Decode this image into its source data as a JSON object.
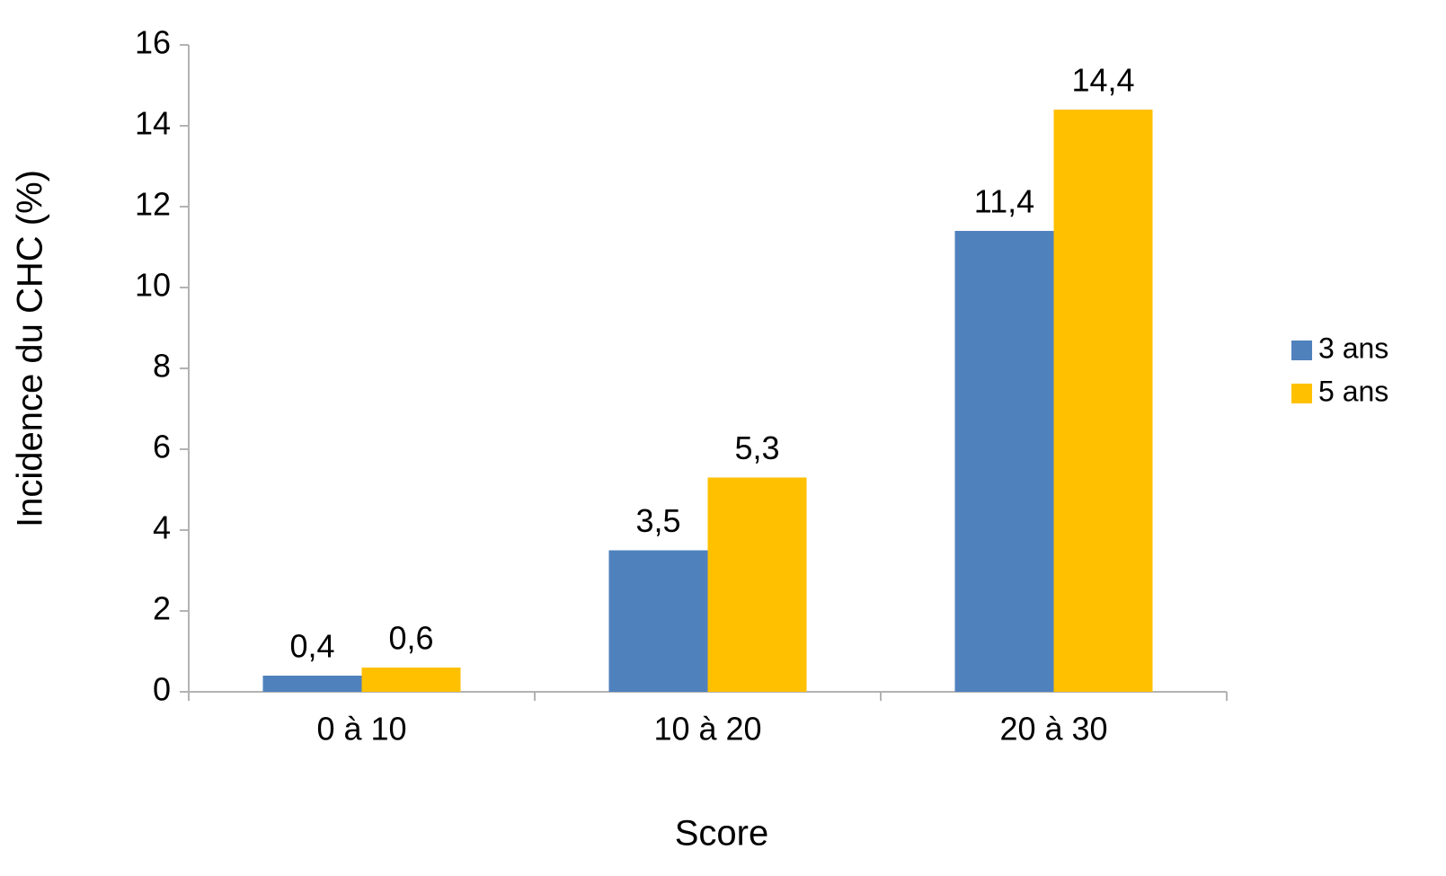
{
  "chart_data": {
    "type": "bar",
    "x_label": "Score",
    "y_label": "Incidence du CHC (%)",
    "categories": [
      "0 à 10",
      "10 à 20",
      "20 à 30"
    ],
    "series": [
      {
        "name": "3 ans",
        "color": "#4f81bd",
        "values": [
          0.4,
          3.5,
          11.4
        ],
        "value_labels": [
          "0,4",
          "3,5",
          "11,4"
        ]
      },
      {
        "name": "5 ans",
        "color": "#ffc000",
        "values": [
          0.6,
          5.3,
          14.4
        ],
        "value_labels": [
          "0,6",
          "5,3",
          "14,4"
        ]
      }
    ],
    "ylim": [
      0,
      16
    ],
    "yticks": [
      0,
      2,
      4,
      6,
      8,
      10,
      12,
      14,
      16
    ],
    "grid": false,
    "legend": "right"
  }
}
